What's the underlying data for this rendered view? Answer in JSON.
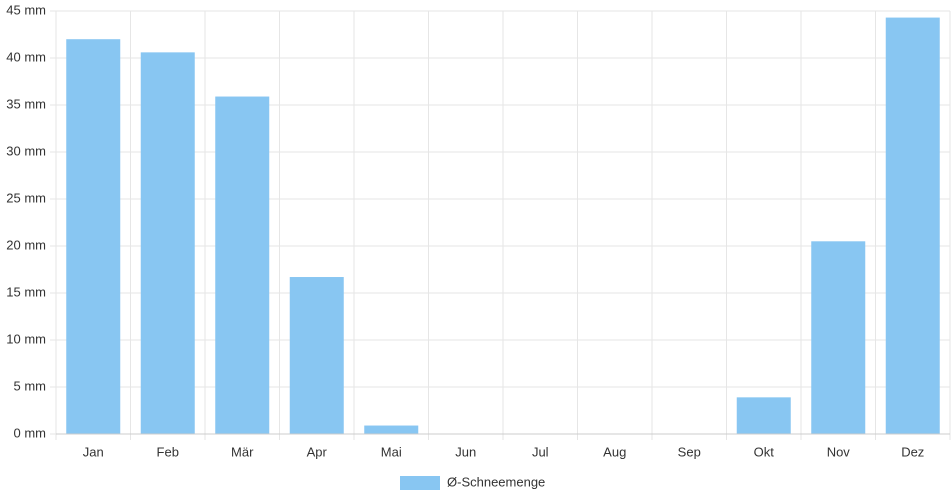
{
  "chart_data": {
    "type": "bar",
    "categories": [
      "Jan",
      "Feb",
      "Mär",
      "Apr",
      "Mai",
      "Jun",
      "Jul",
      "Aug",
      "Sep",
      "Okt",
      "Nov",
      "Dez"
    ],
    "series": [
      {
        "name": "Ø-Schneemenge",
        "color": "#88c6f2",
        "values": [
          42.0,
          40.6,
          35.9,
          16.7,
          0.9,
          0,
          0,
          0,
          0,
          3.9,
          20.5,
          44.3
        ]
      }
    ],
    "ylim": [
      0,
      45
    ],
    "yticks": [
      {
        "value": 0,
        "label": "0 mm"
      },
      {
        "value": 5,
        "label": "5 mm"
      },
      {
        "value": 10,
        "label": "10 mm"
      },
      {
        "value": 15,
        "label": "15 mm"
      },
      {
        "value": 20,
        "label": "20 mm"
      },
      {
        "value": 25,
        "label": "25 mm"
      },
      {
        "value": 30,
        "label": "30 mm"
      },
      {
        "value": 35,
        "label": "35 mm"
      },
      {
        "value": 40,
        "label": "40 mm"
      },
      {
        "value": 45,
        "label": "45 mm"
      }
    ],
    "grid": true,
    "legend": "bottom"
  }
}
